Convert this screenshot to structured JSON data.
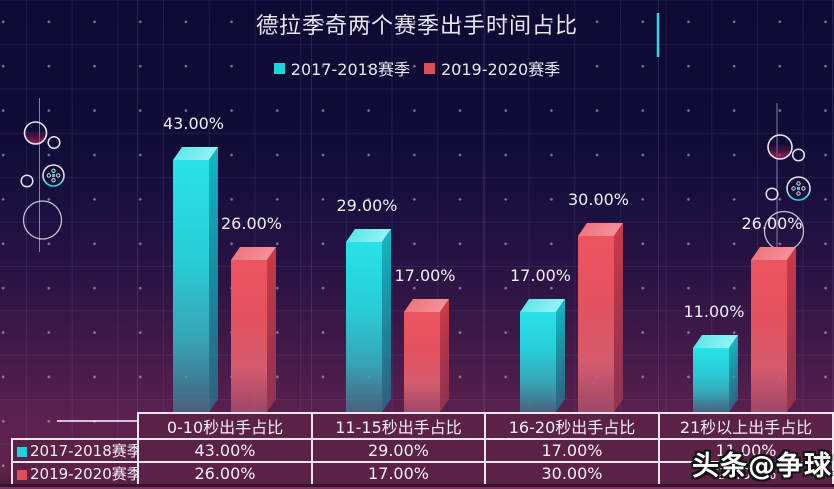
{
  "title": "德拉季奇两个赛季出手时间占比",
  "legend": [
    {
      "label": "2017-2018赛季",
      "color": "#1ed4dc"
    },
    {
      "label": "2019-2020赛季",
      "color": "#dd4f58"
    }
  ],
  "chart_data": {
    "type": "bar",
    "title": "德拉季奇两个赛季出手时间占比",
    "categories": [
      "0-10秒出手占比",
      "11-15秒出手占比",
      "16-20秒出手占比",
      "21秒以上出手占比"
    ],
    "series": [
      {
        "name": "2017-2018赛季",
        "color": "#1ed4dc",
        "values": [
          43,
          29,
          17,
          11
        ],
        "labels": [
          "43.00%",
          "29.00%",
          "17.00%",
          "11.00%"
        ]
      },
      {
        "name": "2019-2020赛季",
        "color": "#dd4f58",
        "values": [
          26,
          17,
          30,
          26
        ],
        "labels": [
          "26.00%",
          "17.00%",
          "30.00%",
          "26.00%"
        ]
      }
    ],
    "xlabel": "",
    "ylabel": "",
    "ylim": [
      0,
      45
    ],
    "grid": true,
    "legend_position": "top-center",
    "value_label_suffix": "%"
  },
  "table": {
    "corner": "",
    "headers": [
      "0-10秒出手占比",
      "11-15秒出手占比",
      "16-20秒出手占比",
      "21秒以上出手占比"
    ],
    "rows": [
      {
        "label": "2017-2018赛季",
        "swatch": "#1ed4dc",
        "cells": [
          "43.00%",
          "29.00%",
          "17.00%",
          "11.00%"
        ]
      },
      {
        "label": "2019-2020赛季",
        "swatch": "#dd4f58",
        "cells": [
          "26.00%",
          "17.00%",
          "30.00%",
          "26.00%"
        ]
      }
    ]
  },
  "watermark": "头条@争球",
  "colors": {
    "background_top": "#0d0b33",
    "background_bottom": "#5e2248",
    "title_text": "#e9e6f2",
    "bar_label_text": "#eef0f8",
    "table_border": "#e9e6ee",
    "table_background": "#5c2146",
    "table_text": "#f3f0f7",
    "series1": "#1ed4dc",
    "series2": "#dd4f58"
  }
}
